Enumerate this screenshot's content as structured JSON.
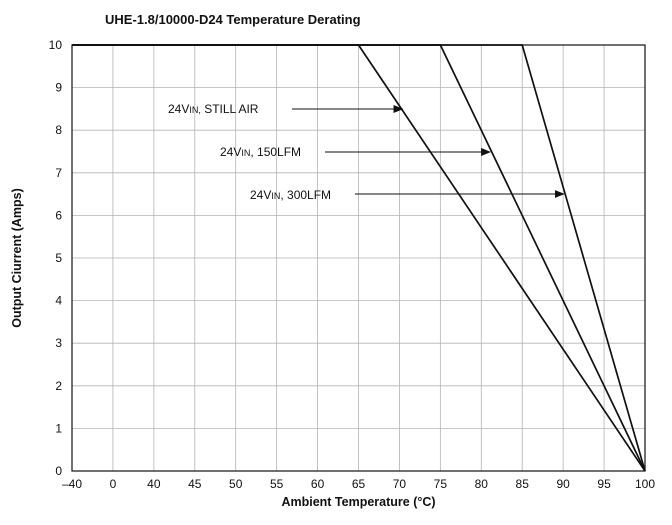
{
  "chart_data": {
    "type": "line",
    "title": "UHE-1.8/10000-D24  Temperature Derating",
    "xlabel": "Ambient Temperature (°C)",
    "ylabel": "Output Ciurrent (Amps)",
    "x_ticks": [
      "–40",
      "0",
      "40",
      "45",
      "50",
      "55",
      "60",
      "65",
      "70",
      "75",
      "80",
      "85",
      "90",
      "95",
      "100"
    ],
    "y_ticks": [
      "0",
      "1",
      "2",
      "3",
      "4",
      "5",
      "6",
      "7",
      "8",
      "9",
      "10"
    ],
    "ylim": [
      0,
      10
    ],
    "grid": true,
    "series": [
      {
        "name": "24VIN, STILL AIR",
        "label_main": "24V",
        "label_sub": "IN,",
        "label_rest": " STILL AIR",
        "points": [
          [
            -40,
            10
          ],
          [
            65,
            10
          ],
          [
            100,
            0
          ]
        ],
        "arrow_target_x": 70.5
      },
      {
        "name": "24VIN, 150LFM",
        "label_main": "24V",
        "label_sub": "IN",
        "label_rest": ", 150LFM",
        "points": [
          [
            -40,
            10
          ],
          [
            75,
            10
          ],
          [
            100,
            0
          ]
        ],
        "arrow_target_x": 81.2
      },
      {
        "name": "24VIN, 300LFM",
        "label_main": "24V",
        "label_sub": "IN",
        "label_rest": ", 300LFM",
        "points": [
          [
            -40,
            10
          ],
          [
            85,
            10
          ],
          [
            100,
            0
          ]
        ],
        "arrow_target_x": 90.2
      }
    ]
  }
}
